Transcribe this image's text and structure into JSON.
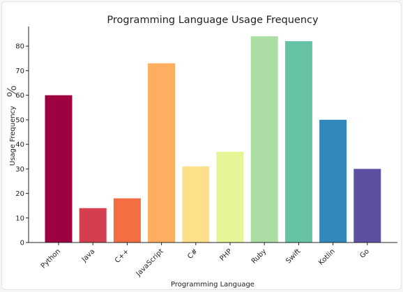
{
  "chart_data": {
    "type": "bar",
    "title": "Programming Language Usage Frequency",
    "xlabel": "Programming Language",
    "ylabel": "Usage Frequency",
    "ylabel_symbol": "%",
    "categories": [
      "Python",
      "Java",
      "C++",
      "JavaScript",
      "C#",
      "PHP",
      "Ruby",
      "Swift",
      "Kotlin",
      "Go"
    ],
    "values": [
      60,
      14,
      18,
      73,
      31,
      37,
      84,
      82,
      50,
      30
    ],
    "colors": [
      "#9e0142",
      "#d53e4f",
      "#f46d43",
      "#fdae61",
      "#fee08b",
      "#e6f598",
      "#abdda4",
      "#66c2a5",
      "#3288bd",
      "#5e4fa2"
    ],
    "yticks": [
      0,
      10,
      20,
      30,
      40,
      50,
      60,
      70,
      80
    ],
    "ylim": [
      0,
      88
    ],
    "grid": false,
    "legend": "none"
  }
}
